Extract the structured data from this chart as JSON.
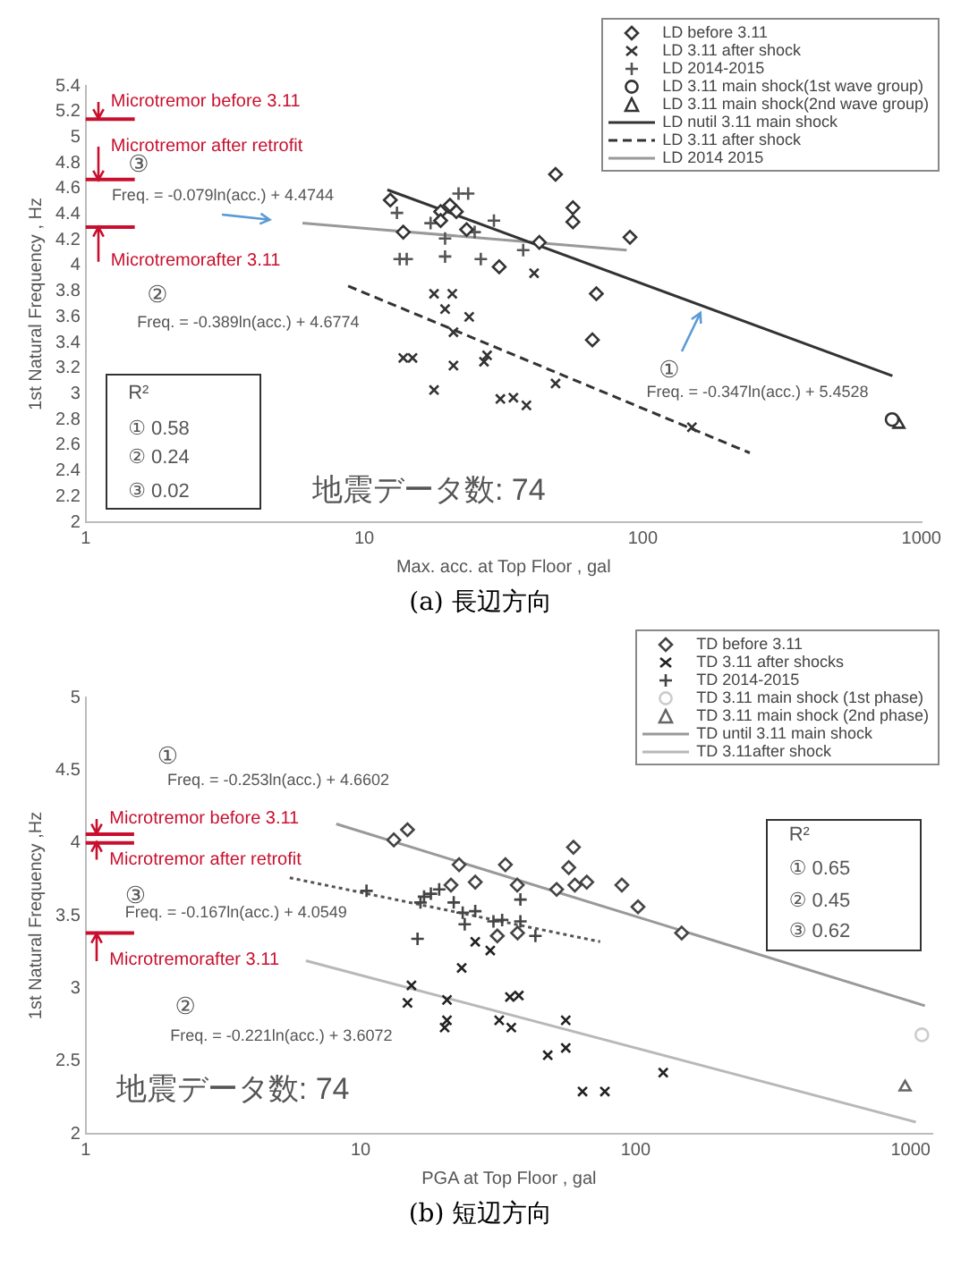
{
  "chart_data": [
    {
      "type": "scatter",
      "title": "(a) 長辺方向",
      "xlabel": "Max. acc. at Top Floor , gal",
      "ylabel": "1st Natural Frequency , Hz",
      "log": "x",
      "xlim": [
        1,
        1000
      ],
      "xticks": [
        1,
        10,
        100,
        1000
      ],
      "ylim": [
        2,
        5.4
      ],
      "yticks": [
        2,
        2.2,
        2.4,
        2.6,
        2.8,
        3,
        3.2,
        3.4,
        3.6,
        3.8,
        4,
        4.2,
        4.4,
        4.6,
        4.8,
        5,
        5.2,
        5.4
      ],
      "legend": "top right",
      "series": [
        {
          "name": "LD before 3.11",
          "type": "scatter",
          "marker": "diamond",
          "color": "#333333",
          "x": [
            12.4,
            13.8,
            18.8,
            20.3,
            21.4,
            18.8,
            23.3,
            30.5,
            42.5,
            48.6,
            56.1,
            56.1,
            68.1,
            65.9,
            89.9
          ],
          "values": [
            4.51,
            4.26,
            4.42,
            4.47,
            4.42,
            4.35,
            4.28,
            3.99,
            4.18,
            4.71,
            4.45,
            4.34,
            3.78,
            3.42,
            4.22
          ]
        },
        {
          "name": "LD 3.11 after shock",
          "type": "scatter",
          "marker": "cross",
          "color": "#333333",
          "x": [
            17.8,
            20.7,
            19.5,
            23.8,
            20.9,
            13.8,
            14.9,
            20.9,
            26.9,
            27.6,
            17.8,
            30.8,
            34.3,
            38.2,
            48.6,
            40.7,
            150
          ],
          "values": [
            3.78,
            3.78,
            3.66,
            3.6,
            3.48,
            3.28,
            3.28,
            3.22,
            3.25,
            3.3,
            3.03,
            2.96,
            2.97,
            2.91,
            3.08,
            3.94,
            2.74
          ]
        },
        {
          "name": "LD 2014-2015",
          "type": "scatter",
          "marker": "plus",
          "color": "#555555",
          "x": [
            13.1,
            13.4,
            14.2,
            19.5,
            19.5,
            21.8,
            23.6,
            17.3,
            26.2,
            29.2,
            37.2,
            24.9
          ],
          "values": [
            4.41,
            4.05,
            4.05,
            4.07,
            4.21,
            4.56,
            4.56,
            4.33,
            4.05,
            4.35,
            4.12,
            4.26
          ]
        },
        {
          "name": "LD 3.11 main shock(1st wave group)",
          "type": "scatter",
          "marker": "circle",
          "color": "#333333",
          "x": [
            785
          ],
          "values": [
            2.8
          ]
        },
        {
          "name": "LD 3.11 main shock(2nd wave group)",
          "type": "scatter",
          "marker": "triangle",
          "color": "#333333",
          "x": [
            830
          ],
          "values": [
            2.76
          ]
        },
        {
          "name": "LD nutil 3.11 main shock",
          "type": "line",
          "marker": "none",
          "line_style": "solid",
          "color": "#333333",
          "x": [
            12.1,
            787
          ],
          "values": [
            4.59,
            3.14
          ]
        },
        {
          "name": "LD 3.11 after shock",
          "type": "line",
          "marker": "none",
          "line_style": "dashed",
          "color": "#333333",
          "x": [
            8.75,
            242
          ],
          "values": [
            3.84,
            2.54
          ]
        },
        {
          "name": "LD 2014 2015",
          "type": "line",
          "marker": "none",
          "line_style": "solid",
          "color": "#999999",
          "x": [
            6.0,
            87.5
          ],
          "values": [
            4.33,
            4.12
          ]
        }
      ],
      "ref_lines": [
        {
          "axis": "y",
          "value": 5.14,
          "label": "Microtremor before 3.11",
          "color": "#c8102e"
        },
        {
          "axis": "y",
          "value": 4.67,
          "label": "Microtremor after retrofit",
          "color": "#c8102e"
        },
        {
          "axis": "y",
          "value": 4.3,
          "label": "Microtremorafter 3.11",
          "color": "#c8102e"
        }
      ],
      "annotations": [
        "③",
        "Freq. = -0.079ln(acc.) + 4.4744",
        "②",
        "Freq. = -0.389ln(acc.) + 4.6774",
        "①",
        "Freq. = -0.347ln(acc.) + 5.4528",
        "R²",
        "① 0.58",
        "② 0.24",
        "③ 0.02",
        "地震データ数: 74"
      ]
    },
    {
      "type": "scatter",
      "title": "(b) 短辺方向",
      "xlabel": "PGA at Top Floor , gal",
      "ylabel": "1st Natural Frequency ,Hz",
      "log": "x",
      "xlim": [
        1,
        1200
      ],
      "xticks": [
        1,
        10,
        100,
        1000
      ],
      "ylim": [
        2,
        5
      ],
      "yticks": [
        2,
        2.5,
        3,
        3.5,
        4,
        4.5,
        5
      ],
      "legend": "top right",
      "series": [
        {
          "name": "TD before 3.11",
          "type": "scatter",
          "marker": "diamond",
          "color": "#444444",
          "x": [
            13.2,
            14.8,
            22.8,
            21.3,
            26.1,
            33.6,
            37.1,
            51.6,
            60.1,
            66.4,
            59.4,
            57.1,
            89.1,
            102,
            147,
            37.2,
            31.4
          ],
          "values": [
            4.02,
            4.09,
            3.85,
            3.71,
            3.73,
            3.85,
            3.71,
            3.68,
            3.71,
            3.73,
            3.97,
            3.83,
            3.71,
            3.56,
            3.38,
            3.38,
            3.36
          ]
        },
        {
          "name": "TD 3.11 after shocks",
          "type": "scatter",
          "marker": "cross",
          "color": "#222222",
          "x": [
            15.3,
            14.8,
            20.6,
            20.6,
            20.2,
            23.3,
            26.1,
            29.6,
            31.9,
            35.3,
            34.9,
            37.6,
            47.9,
            55.7,
            55.7,
            64.1,
            77.3,
            126
          ],
          "values": [
            3.02,
            2.9,
            2.92,
            2.78,
            2.73,
            3.14,
            3.32,
            3.26,
            2.78,
            2.73,
            2.94,
            2.95,
            2.54,
            2.78,
            2.59,
            2.29,
            2.29,
            2.42
          ]
        },
        {
          "name": "TD 2014-2015",
          "type": "scatter",
          "marker": "plus",
          "color": "#444444",
          "x": [
            10.5,
            16.1,
            16.5,
            17.0,
            18.0,
            19.3,
            21.8,
            23.9,
            23.5,
            26.1,
            30.4,
            32.7,
            38.1,
            38.1,
            43.2
          ],
          "values": [
            3.67,
            3.34,
            3.59,
            3.63,
            3.65,
            3.68,
            3.59,
            3.44,
            3.52,
            3.53,
            3.46,
            3.47,
            3.61,
            3.46,
            3.36
          ]
        },
        {
          "name": "TD 3.11 main shock (1st phase)",
          "type": "scatter",
          "marker": "circle",
          "color": "#cccccc",
          "x": [
            1099
          ],
          "values": [
            2.68
          ]
        },
        {
          "name": "TD 3.11 main shock (2nd phase)",
          "type": "scatter",
          "marker": "triangle",
          "color": "#666666",
          "x": [
            955
          ],
          "values": [
            2.32
          ]
        },
        {
          "name": "TD until 3.11 main shock",
          "type": "line",
          "marker": "none",
          "line_style": "solid",
          "color": "#999999",
          "x": [
            8.15,
            1127
          ],
          "values": [
            4.13,
            2.88
          ]
        },
        {
          "name": "TD 3.11after shock",
          "type": "line",
          "marker": "none",
          "line_style": "solid",
          "color": "#b8b8b8",
          "x": [
            6.32,
            1045
          ],
          "values": [
            3.19,
            2.08
          ]
        },
        {
          "type": "line",
          "marker": "none",
          "line_style": "dotted",
          "color": "#555555",
          "x": [
            5.52,
            74.3
          ],
          "values": [
            3.76,
            3.32
          ]
        }
      ],
      "ref_lines": [
        {
          "axis": "y",
          "value": 4.06,
          "label": "Microtremor before 3.11",
          "color": "#c8102e"
        },
        {
          "axis": "y",
          "value": 4.0,
          "label": "Microtremor after retrofit",
          "color": "#c8102e"
        },
        {
          "axis": "y",
          "value": 3.38,
          "label": "Microtremorafter 3.11",
          "color": "#c8102e"
        }
      ],
      "annotations": [
        "①",
        "Freq. = -0.253ln(acc.) + 4.6602",
        "③",
        "Freq. = -0.167ln(acc.) + 4.0549",
        "②",
        "Freq. = -0.221ln(acc.) + 3.6072",
        "R²",
        "① 0.65",
        "② 0.45",
        "③ 0.62",
        "地震データ数: 74"
      ]
    }
  ]
}
